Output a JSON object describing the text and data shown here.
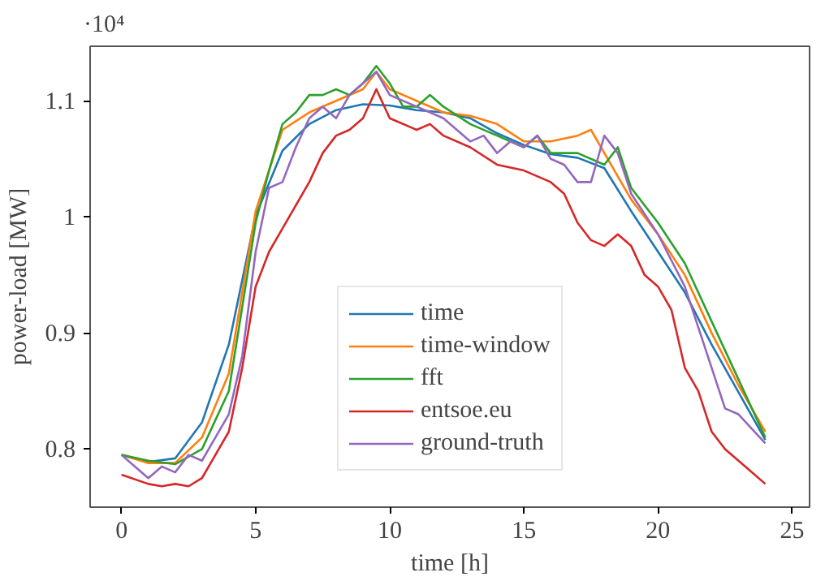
{
  "chart_data": {
    "type": "line",
    "xlabel": "time [h]",
    "ylabel": "power-load [MW]",
    "annotations": [
      "·10⁴"
    ],
    "xlim": [
      -1.17,
      25.65
    ],
    "ylim": [
      0.75,
      1.147
    ],
    "xticks": [
      0,
      5,
      10,
      15,
      20,
      25
    ],
    "yticks": [
      0.8,
      0.9,
      1,
      1.1
    ],
    "grid": false,
    "legend": "bottom",
    "line_style": "solid",
    "marker": "none",
    "series": [
      {
        "name": "time",
        "color": "#1f77b4",
        "x": [
          0,
          1,
          2,
          3,
          4,
          5,
          6,
          7,
          8,
          9,
          10,
          11,
          12,
          13,
          14,
          15,
          16,
          17,
          18,
          19,
          20,
          21,
          22,
          23,
          24
        ],
        "values": [
          0.795,
          0.789,
          0.792,
          0.823,
          0.89,
          1.001,
          1.057,
          1.08,
          1.092,
          1.097,
          1.096,
          1.092,
          1.09,
          1.085,
          1.072,
          1.062,
          1.054,
          1.051,
          1.042,
          1.005,
          0.97,
          0.935,
          0.89,
          0.849,
          0.808
        ]
      },
      {
        "name": "time-window",
        "color": "#ff7f0e",
        "x": [
          0,
          1,
          2,
          3,
          4,
          5,
          6,
          7,
          8,
          9,
          9.5,
          10,
          11,
          12,
          13,
          14,
          15,
          16,
          17,
          17.5,
          18,
          19,
          20,
          21,
          22,
          23,
          24
        ],
        "values": [
          0.795,
          0.788,
          0.788,
          0.81,
          0.865,
          1.005,
          1.075,
          1.09,
          1.1,
          1.11,
          1.125,
          1.11,
          1.1,
          1.09,
          1.087,
          1.08,
          1.065,
          1.065,
          1.07,
          1.075,
          1.055,
          1.015,
          0.985,
          0.95,
          0.9,
          0.855,
          0.815
        ]
      },
      {
        "name": "fft",
        "color": "#2ca02c",
        "x": [
          0,
          1,
          2,
          3,
          4,
          5,
          5.5,
          6,
          6.5,
          7,
          7.5,
          8,
          8.5,
          9,
          9.5,
          10,
          10.5,
          11,
          11.5,
          12,
          13,
          14,
          15,
          15.5,
          16,
          17,
          18,
          18.5,
          19,
          20,
          21,
          22,
          23,
          24
        ],
        "values": [
          0.795,
          0.79,
          0.787,
          0.8,
          0.85,
          0.995,
          1.04,
          1.08,
          1.09,
          1.105,
          1.105,
          1.11,
          1.105,
          1.115,
          1.13,
          1.115,
          1.095,
          1.095,
          1.105,
          1.095,
          1.08,
          1.07,
          1.06,
          1.07,
          1.055,
          1.055,
          1.045,
          1.06,
          1.025,
          0.995,
          0.96,
          0.91,
          0.86,
          0.81
        ]
      },
      {
        "name": "entsoe.eu",
        "color": "#d62728",
        "x": [
          0,
          1,
          1.5,
          2,
          2.5,
          3,
          3.5,
          4,
          4.5,
          5,
          5.5,
          6,
          6.5,
          7,
          7.5,
          8,
          8.5,
          9,
          9.5,
          10,
          11,
          11.5,
          12,
          13,
          14,
          15,
          16,
          16.5,
          17,
          17.5,
          18,
          18.5,
          19,
          19.5,
          20,
          20.5,
          21,
          21.5,
          22,
          22.5,
          23,
          23.5,
          24
        ],
        "values": [
          0.778,
          0.77,
          0.768,
          0.77,
          0.768,
          0.775,
          0.795,
          0.815,
          0.87,
          0.94,
          0.97,
          0.99,
          1.01,
          1.03,
          1.055,
          1.07,
          1.075,
          1.085,
          1.11,
          1.085,
          1.075,
          1.08,
          1.07,
          1.06,
          1.045,
          1.04,
          1.03,
          1.02,
          0.995,
          0.98,
          0.975,
          0.985,
          0.975,
          0.95,
          0.94,
          0.92,
          0.87,
          0.85,
          0.815,
          0.8,
          0.79,
          0.78,
          0.77
        ]
      },
      {
        "name": "ground-truth",
        "color": "#9467bd",
        "x": [
          0,
          0.5,
          1,
          1.5,
          2,
          2.5,
          3,
          3.5,
          4,
          4.5,
          5,
          5.5,
          6,
          6.5,
          7,
          7.5,
          8,
          8.5,
          9,
          9.5,
          10,
          11,
          11.5,
          12,
          12.5,
          13,
          13.5,
          14,
          14.5,
          15,
          15.5,
          16,
          16.5,
          17,
          17.5,
          18,
          18.5,
          19,
          20,
          21,
          22,
          22.5,
          23,
          24
        ],
        "values": [
          0.795,
          0.785,
          0.775,
          0.785,
          0.78,
          0.795,
          0.79,
          0.81,
          0.83,
          0.88,
          0.97,
          1.025,
          1.03,
          1.06,
          1.085,
          1.095,
          1.085,
          1.105,
          1.115,
          1.125,
          1.105,
          1.095,
          1.09,
          1.085,
          1.075,
          1.065,
          1.07,
          1.055,
          1.065,
          1.06,
          1.07,
          1.05,
          1.045,
          1.03,
          1.03,
          1.07,
          1.055,
          1.02,
          0.985,
          0.94,
          0.87,
          0.835,
          0.83,
          0.805
        ]
      }
    ]
  }
}
